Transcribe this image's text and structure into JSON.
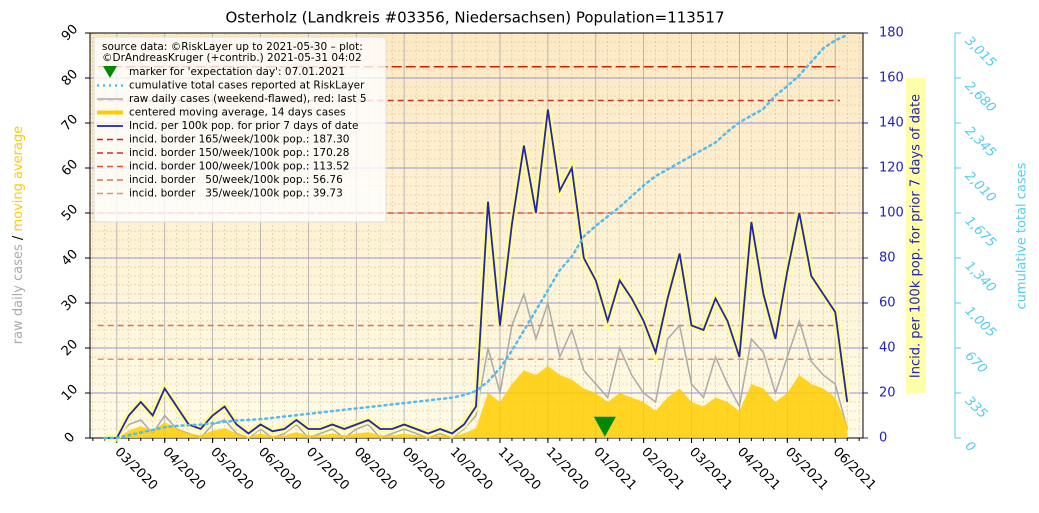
{
  "chart_data": {
    "type": "line",
    "title": "Osterholz (Landkreis #03356, Niedersachsen) Population=113517",
    "ylabel_parts": [
      "raw daily cases",
      "/",
      "moving average"
    ],
    "y2label": "Incid. per 100k pop. for prior 7 days of date",
    "y3label": "cumulative total cases",
    "source": [
      "source data: ©RiskLayer up to 2021-05-30 – plot:",
      "©DrAndreasKruger (+contrib.) 2021-05-31 04:02"
    ],
    "xlim": [
      -0.56,
      15.58
    ],
    "xticks": [
      {
        "value": 0,
        "label": "03/2020"
      },
      {
        "value": 1,
        "label": "04/2020"
      },
      {
        "value": 2,
        "label": "05/2020"
      },
      {
        "value": 3,
        "label": "06/2020"
      },
      {
        "value": 4,
        "label": "07/2020"
      },
      {
        "value": 5,
        "label": "08/2020"
      },
      {
        "value": 6,
        "label": "09/2020"
      },
      {
        "value": 7,
        "label": "10/2020"
      },
      {
        "value": 8,
        "label": "11/2020"
      },
      {
        "value": 9,
        "label": "12/2020"
      },
      {
        "value": 10,
        "label": "01/2021"
      },
      {
        "value": 11,
        "label": "02/2021"
      },
      {
        "value": 12,
        "label": "03/2021"
      },
      {
        "value": 13,
        "label": "04/2021"
      },
      {
        "value": 14,
        "label": "05/2021"
      },
      {
        "value": 15,
        "label": "06/2021"
      }
    ],
    "ylim": [
      0,
      90
    ],
    "yticks": [
      0,
      10,
      20,
      30,
      40,
      50,
      60,
      70,
      80,
      90
    ],
    "y2lim": [
      0,
      180
    ],
    "y2ticks": [
      0,
      20,
      40,
      60,
      80,
      100,
      120,
      140,
      160,
      180
    ],
    "y3lim": [
      0,
      3015
    ],
    "y3ticks": [
      0,
      335,
      670,
      {
        "value": 1005,
        "label": "1,005"
      },
      {
        "value": 1340,
        "label": "1,340"
      },
      {
        "value": 1675,
        "label": "1,675"
      },
      {
        "value": 2010,
        "label": "2,010"
      },
      {
        "value": 2345,
        "label": "2,345"
      },
      {
        "value": 2680,
        "label": "2,680"
      },
      {
        "value": 3015,
        "label": "3,015"
      }
    ],
    "grid": true,
    "x": [
      -0.25,
      0,
      0.25,
      0.5,
      0.75,
      1,
      1.25,
      1.5,
      1.75,
      2,
      2.25,
      2.5,
      2.75,
      3,
      3.25,
      3.5,
      3.75,
      4,
      4.25,
      4.5,
      4.75,
      5,
      5.25,
      5.5,
      5.75,
      6,
      6.25,
      6.5,
      6.75,
      7,
      7.25,
      7.5,
      7.75,
      8,
      8.25,
      8.5,
      8.75,
      9,
      9.25,
      9.5,
      9.75,
      10,
      10.25,
      10.5,
      10.75,
      11,
      11.25,
      11.5,
      11.75,
      12,
      12.25,
      12.5,
      12.75,
      13,
      13.25,
      13.5,
      13.75,
      14,
      14.25,
      14.5,
      14.75,
      15,
      15.25
    ],
    "series": [
      {
        "name": "raw daily cases (weekend-flawed), red: last 5",
        "color": "#aaaaaa",
        "axis": "y",
        "values": [
          0,
          0,
          3,
          4,
          1,
          5,
          2,
          1,
          0,
          3,
          4,
          1,
          0,
          2,
          0,
          1,
          3,
          0,
          1,
          2,
          0,
          2,
          3,
          0,
          1,
          2,
          1,
          0,
          1,
          0,
          2,
          5,
          20,
          10,
          25,
          32,
          22,
          30,
          18,
          24,
          15,
          12,
          9,
          20,
          14,
          10,
          8,
          22,
          25,
          12,
          9,
          18,
          12,
          7,
          22,
          19,
          10,
          18,
          26,
          17,
          14,
          12,
          2
        ]
      },
      {
        "name": "centered moving average, 14 days cases",
        "color": "#ffcc00",
        "axis": "y",
        "values": [
          0,
          0,
          1.6,
          2.6,
          1.6,
          3.5,
          2.2,
          1,
          0.6,
          1.6,
          2.2,
          1,
          0.3,
          1,
          0.5,
          0.6,
          1.3,
          0.6,
          0.6,
          1,
          0.6,
          1,
          1.3,
          0.6,
          0.6,
          1,
          0.6,
          0.3,
          0.6,
          0.3,
          1,
          2.2,
          10,
          8,
          12,
          15,
          14,
          16,
          14,
          13,
          11,
          10,
          8,
          10,
          9,
          8,
          6,
          9,
          11,
          8,
          7,
          9,
          8,
          6,
          12,
          11,
          8,
          10,
          14,
          12,
          11,
          9,
          3
        ]
      },
      {
        "name": "Incid. per 100k pop. for prior 7 days of date",
        "color": "#2222bb",
        "axis": "y2",
        "values": [
          0,
          0,
          10,
          16,
          10,
          22,
          14,
          6,
          4,
          10,
          14,
          6,
          2,
          6,
          3,
          4,
          8,
          4,
          4,
          6,
          4,
          6,
          8,
          4,
          4,
          6,
          4,
          2,
          4,
          2,
          6,
          14,
          105,
          50,
          95,
          130,
          100,
          146,
          110,
          120,
          80,
          70,
          52,
          70,
          62,
          52,
          38,
          62,
          82,
          50,
          48,
          62,
          52,
          36,
          96,
          64,
          44,
          74,
          100,
          72,
          64,
          56,
          16
        ]
      },
      {
        "name": "cumulative total cases reported at RiskLayer",
        "color": "#55bbee",
        "axis": "y3",
        "values": [
          0,
          0,
          20,
          40,
          60,
          80,
          90,
          95,
          100,
          110,
          120,
          130,
          135,
          140,
          150,
          160,
          170,
          180,
          190,
          200,
          210,
          220,
          230,
          240,
          250,
          260,
          270,
          280,
          290,
          300,
          320,
          350,
          420,
          520,
          650,
          800,
          950,
          1100,
          1250,
          1350,
          1500,
          1580,
          1650,
          1720,
          1800,
          1880,
          1950,
          2000,
          2050,
          2100,
          2150,
          2200,
          2280,
          2350,
          2400,
          2450,
          2550,
          2620,
          2700,
          2800,
          2900,
          2960,
          3000
        ]
      }
    ],
    "borders": [
      {
        "name": "incid. border 165/week/100k pop.: 187.30",
        "value": 165,
        "color": "#cc2200"
      },
      {
        "name": "incid. border 150/week/100k pop.: 170.28",
        "value": 150,
        "color": "#cc3322"
      },
      {
        "name": "incid. border 100/week/100k pop.: 113.52",
        "value": 100,
        "color": "#dd5533"
      },
      {
        "name": "incid. border   50/week/100k pop.: 56.76",
        "value": 50,
        "color": "#e07050"
      },
      {
        "name": "incid. border   35/week/100k pop.: 39.73",
        "value": 35,
        "color": "#e89070"
      }
    ],
    "marker": {
      "name": "marker for 'expectation day': 07.01.2021",
      "x": 10.19,
      "value": 2.5,
      "color": "#008800"
    }
  }
}
